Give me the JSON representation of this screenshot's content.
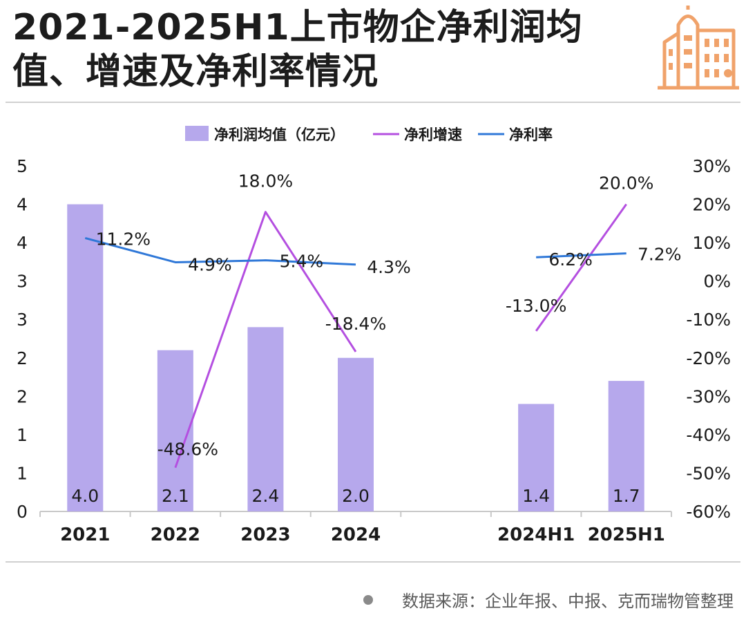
{
  "title": "2021-2025H1上市物企净利润均值、增速及净利率情况",
  "source": "数据来源：企业年报、中报、克而瑞物管整理",
  "colors": {
    "bar": "#b6a8ec",
    "growth": "#b44fe0",
    "margin": "#2f78d8",
    "logo": "#f0a26a",
    "axis": "#c8c8c8"
  },
  "chart_data": {
    "type": "bar+line",
    "categories": [
      "2021",
      "2022",
      "2023",
      "2024",
      "",
      "2024H1",
      "2025H1"
    ],
    "y_left": {
      "range": [
        0,
        4.5
      ],
      "tick_labels": [
        "0",
        "1",
        "1",
        "2",
        "2",
        "3",
        "3",
        "4",
        "4",
        "5"
      ]
    },
    "y_right": {
      "range": [
        -60,
        30
      ],
      "tick_labels": [
        "-60%",
        "-50%",
        "-40%",
        "-30%",
        "-20%",
        "-10%",
        "0%",
        "10%",
        "20%",
        "30%"
      ]
    },
    "legend": [
      "净利润均值（亿元）",
      "净利增速",
      "净利率"
    ],
    "series": [
      {
        "name": "净利润均值（亿元）",
        "kind": "bar",
        "axis": "left",
        "values": [
          4.0,
          2.1,
          2.4,
          2.0,
          null,
          1.4,
          1.7
        ],
        "labels": [
          "4.0",
          "2.1",
          "2.4",
          "2.0",
          "",
          "1.4",
          "1.7"
        ]
      },
      {
        "name": "净利增速",
        "kind": "line",
        "axis": "right",
        "values": [
          null,
          -48.6,
          18.0,
          -18.4,
          null,
          -13.0,
          20.0
        ],
        "labels": [
          "",
          "-48.6%",
          "18.0%",
          "-18.4%",
          "",
          "-13.0%",
          "20.0%"
        ]
      },
      {
        "name": "净利率",
        "kind": "line",
        "axis": "right",
        "values": [
          11.2,
          4.9,
          5.4,
          4.3,
          null,
          6.2,
          7.2
        ],
        "labels": [
          "11.2%",
          "4.9%",
          "5.4%",
          "4.3%",
          "",
          "6.2%",
          "7.2%"
        ]
      }
    ]
  }
}
